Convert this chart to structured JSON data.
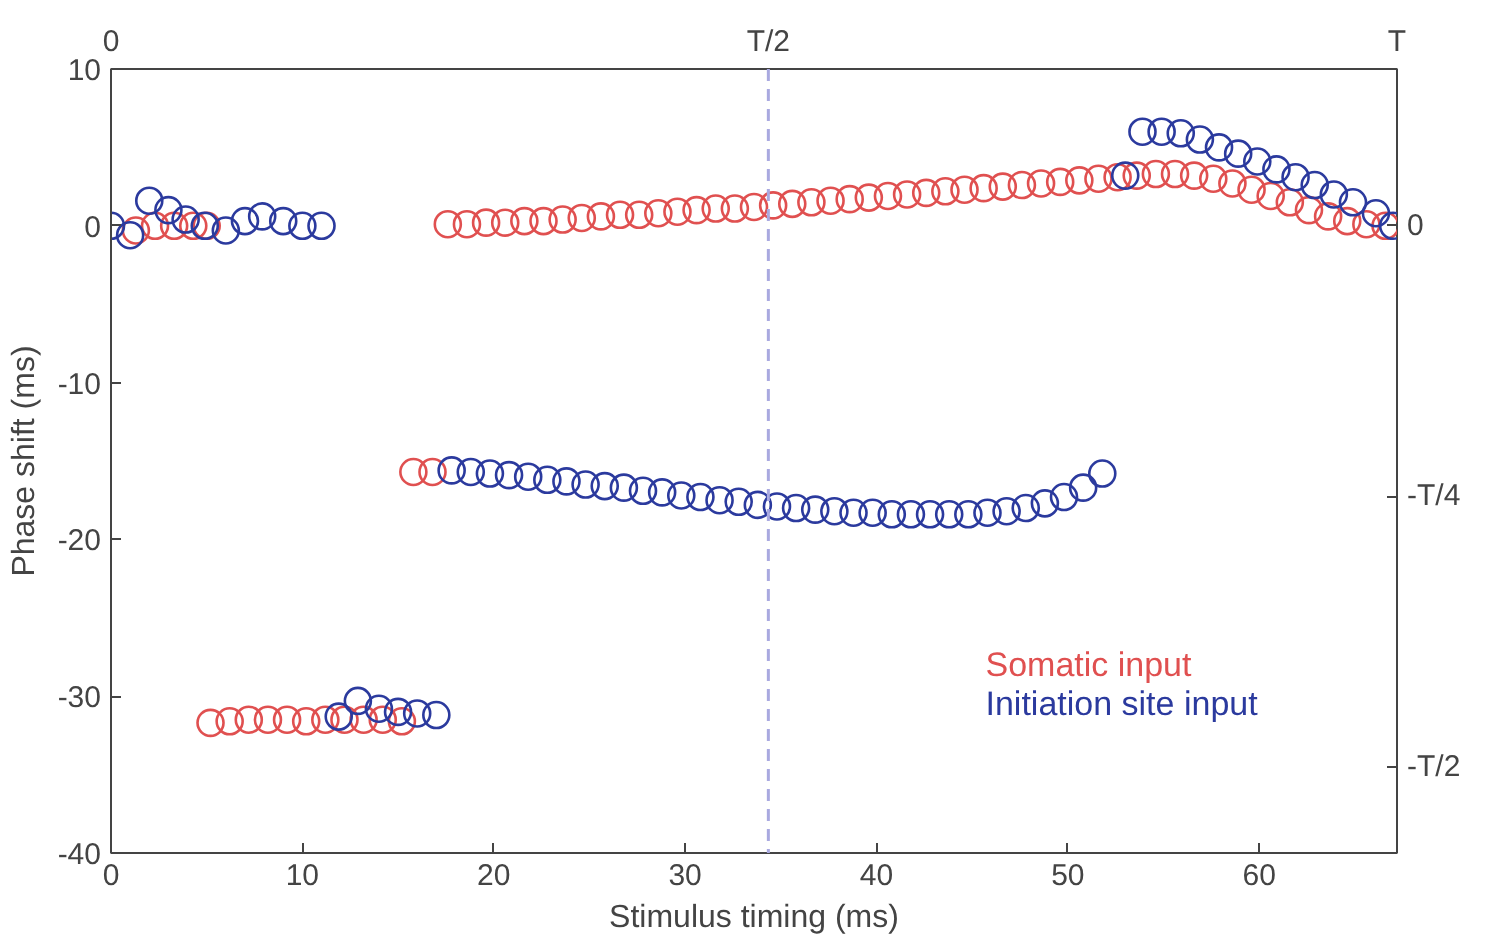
{
  "chart_data": {
    "type": "scatter",
    "xlabel": "Stimulus timing (ms)",
    "ylabel": "Phase shift (ms)",
    "xlim": [
      0,
      67.2
    ],
    "ylim": [
      -40,
      10
    ],
    "xticks": [
      0,
      10,
      20,
      30,
      40,
      50,
      60
    ],
    "yticks": [
      -40,
      -30,
      -20,
      -10,
      0,
      10
    ],
    "annotations": [
      "0",
      "T",
      "0",
      "-T/4",
      "-T/2"
    ],
    "ref_lines": [
      {
        "axis": "x",
        "value": 34.35,
        "label": "T/2",
        "color": "#a9a9e0",
        "line_style": "dashed"
      }
    ],
    "marker": "circle",
    "grid": false,
    "legend": "right",
    "series": [
      {
        "name": "Somatic input",
        "color": "#e05050",
        "x": [
          1.3,
          2.3,
          3.3,
          4.3,
          5.0,
          17.6,
          18.6,
          19.6,
          20.6,
          21.6,
          22.6,
          23.6,
          24.6,
          25.6,
          26.6,
          27.6,
          28.6,
          29.6,
          30.6,
          31.6,
          32.6,
          33.6,
          34.6,
          35.6,
          36.6,
          37.6,
          38.6,
          39.6,
          40.6,
          41.6,
          42.6,
          43.6,
          44.6,
          45.6,
          46.6,
          47.6,
          48.6,
          49.6,
          50.6,
          51.6,
          52.6,
          53.6,
          54.6,
          55.6,
          56.6,
          57.6,
          58.6,
          59.6,
          60.6,
          61.6,
          62.6,
          63.6,
          64.6,
          65.6,
          66.6,
          15.8,
          16.8,
          5.2,
          6.2,
          7.2,
          8.2,
          9.2,
          10.2,
          11.2,
          12.2,
          13.2,
          14.2,
          15.2
        ],
        "values": [
          -0.3,
          0,
          0,
          0,
          0,
          0.1,
          0.1,
          0.2,
          0.2,
          0.3,
          0.3,
          0.4,
          0.5,
          0.6,
          0.7,
          0.7,
          0.8,
          0.9,
          1.0,
          1.1,
          1.1,
          1.2,
          1.3,
          1.4,
          1.5,
          1.6,
          1.7,
          1.8,
          1.9,
          2.0,
          2.1,
          2.2,
          2.3,
          2.4,
          2.5,
          2.6,
          2.7,
          2.8,
          2.9,
          3.0,
          3.1,
          3.2,
          3.3,
          3.3,
          3.2,
          3.0,
          2.7,
          2.3,
          1.9,
          1.5,
          1.0,
          0.6,
          0.3,
          0.1,
          0.0,
          -15.7,
          -15.7,
          -31.7,
          -31.6,
          -31.5,
          -31.5,
          -31.5,
          -31.6,
          -31.5,
          -31.5,
          -31.5,
          -31.5,
          -31.6
        ]
      },
      {
        "name": "Initiation site input",
        "color": "#2b3a9e",
        "x": [
          0,
          1.0,
          2.0,
          3.0,
          3.9,
          4.9,
          6.0,
          7.0,
          7.9,
          9.0,
          10.0,
          11.0,
          17.8,
          18.8,
          19.8,
          20.8,
          21.8,
          22.8,
          23.8,
          24.8,
          25.8,
          26.8,
          27.8,
          28.8,
          29.8,
          30.8,
          31.8,
          32.8,
          33.8,
          34.8,
          35.8,
          36.8,
          37.8,
          38.8,
          39.8,
          40.8,
          41.8,
          42.8,
          43.8,
          44.8,
          45.8,
          46.8,
          47.8,
          48.8,
          49.8,
          50.8,
          51.8,
          11.9,
          12.9,
          14.0,
          15.0,
          16.0,
          17.0,
          53.0,
          53.9,
          54.9,
          55.9,
          56.9,
          57.9,
          58.9,
          59.9,
          60.9,
          61.9,
          62.9,
          63.9,
          64.9,
          66.1,
          67.0
        ],
        "values": [
          0,
          -0.6,
          1.6,
          1.0,
          0.4,
          0,
          -0.3,
          0.3,
          0.6,
          0.3,
          0,
          0,
          -15.6,
          -15.7,
          -15.8,
          -15.9,
          -16.0,
          -16.2,
          -16.3,
          -16.5,
          -16.6,
          -16.7,
          -16.9,
          -17.0,
          -17.2,
          -17.3,
          -17.5,
          -17.6,
          -17.8,
          -17.9,
          -18.0,
          -18.1,
          -18.2,
          -18.3,
          -18.3,
          -18.4,
          -18.4,
          -18.4,
          -18.4,
          -18.4,
          -18.3,
          -18.2,
          -18.0,
          -17.7,
          -17.3,
          -16.7,
          -15.8,
          -31.3,
          -30.3,
          -30.8,
          -31.0,
          -31.1,
          -31.2,
          3.2,
          6.0,
          6.0,
          5.9,
          5.5,
          5.0,
          4.6,
          4.1,
          3.6,
          3.1,
          2.6,
          2.0,
          1.5,
          0.8,
          0.0
        ]
      }
    ]
  }
}
